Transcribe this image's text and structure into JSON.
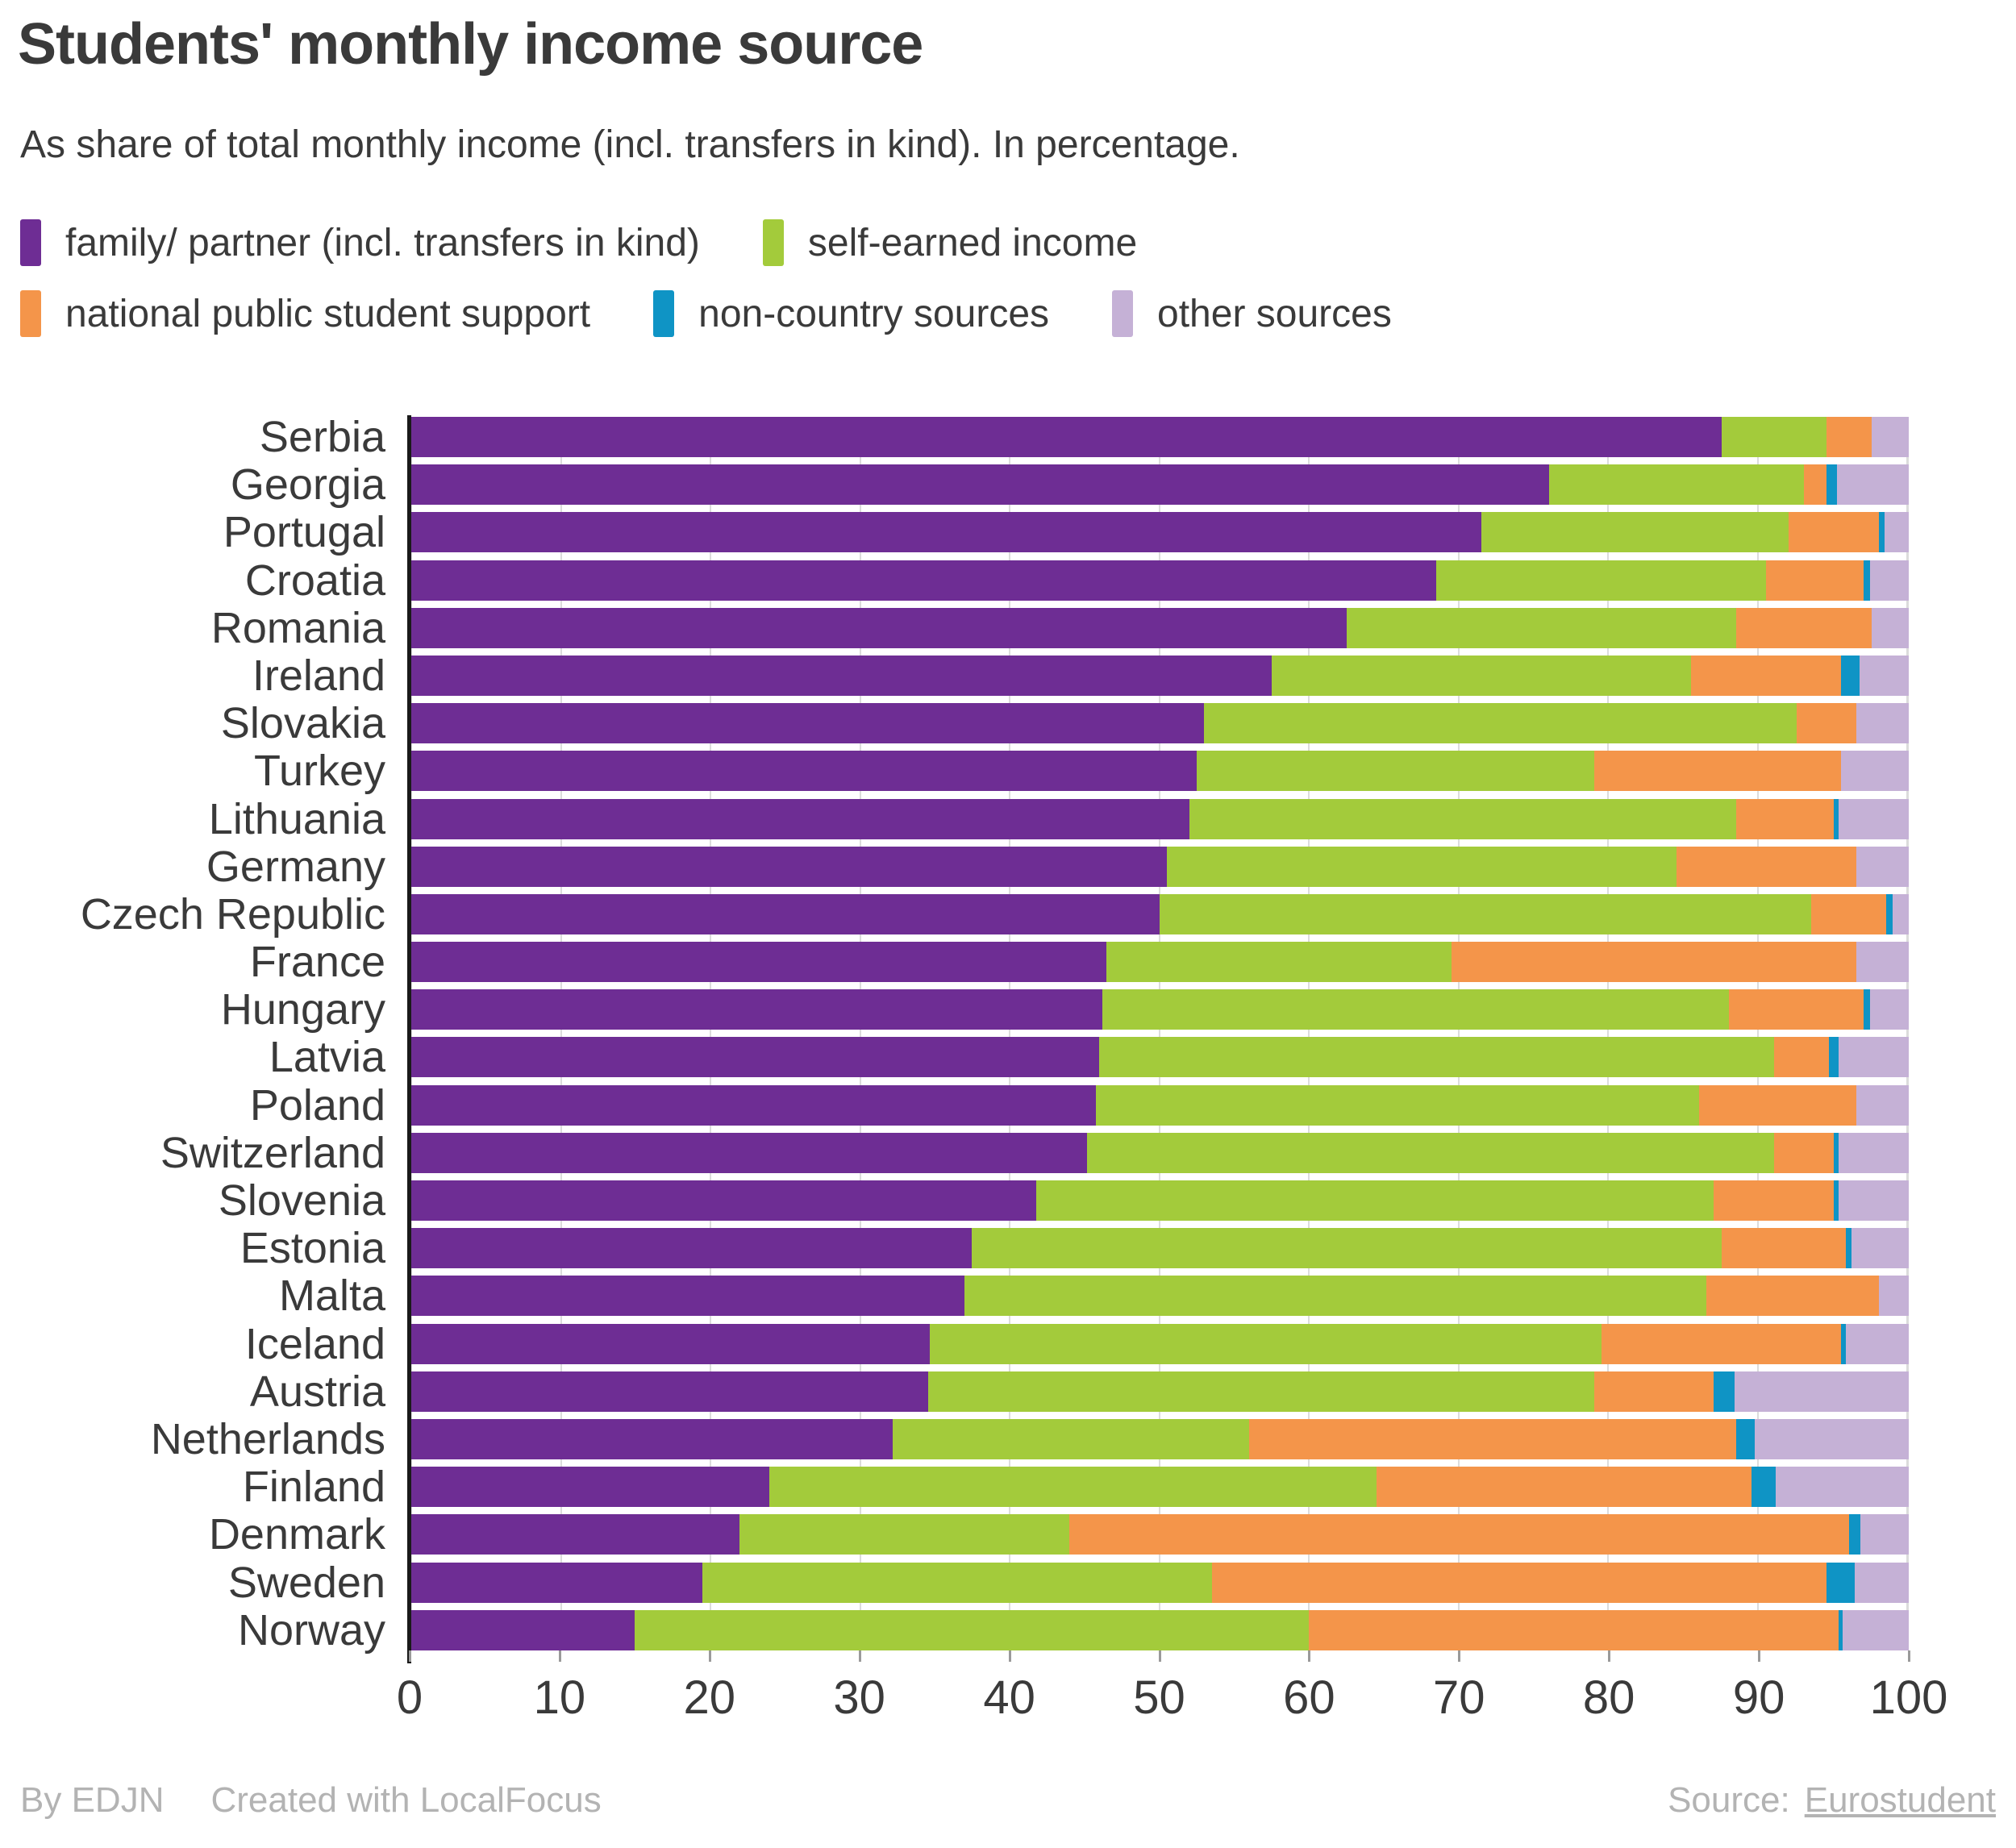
{
  "header": {
    "title": "Students' monthly income source",
    "subtitle": "As share of total monthly income (incl. transfers in kind). In percentage."
  },
  "colors": {
    "family": "#6e2d94",
    "self_earned": "#a3cb3b",
    "national_support": "#f4954a",
    "non_country": "#0f94c5",
    "other": "#c5b1d6",
    "text": "#3a3a3a",
    "muted": "#b3b3b3",
    "gridline": "#dcdcdc",
    "axis": "#1a1a1a"
  },
  "legend": {
    "rows": [
      [
        {
          "key": "family",
          "label": "family/ partner (incl. transfers in kind)"
        },
        {
          "key": "self_earned",
          "label": "self-earned income"
        }
      ],
      [
        {
          "key": "national_support",
          "label": "national public student support"
        },
        {
          "key": "non_country",
          "label": "non-country sources"
        },
        {
          "key": "other",
          "label": "other sources"
        }
      ]
    ]
  },
  "chart_data": {
    "type": "bar",
    "orientation": "horizontal",
    "stacked": true,
    "unit": "percent",
    "xlim": [
      0,
      100
    ],
    "x_ticks": [
      0,
      10,
      20,
      30,
      40,
      50,
      60,
      70,
      80,
      90,
      100
    ],
    "grid": true,
    "legend_position": "top",
    "categories": [
      "Serbia",
      "Georgia",
      "Portugal",
      "Croatia",
      "Romania",
      "Ireland",
      "Slovakia",
      "Turkey",
      "Lithuania",
      "Germany",
      "Czech Republic",
      "France",
      "Hungary",
      "Latvia",
      "Poland",
      "Switzerland",
      "Slovenia",
      "Estonia",
      "Malta",
      "Iceland",
      "Austria",
      "Netherlands",
      "Finland",
      "Denmark",
      "Sweden",
      "Norway"
    ],
    "series": [
      {
        "name": "family/ partner (incl. transfers in kind)",
        "color_key": "family",
        "values": [
          87.5,
          76,
          71.5,
          68.5,
          62.5,
          57.5,
          53,
          52.5,
          52,
          50.5,
          50,
          46.5,
          46.2,
          46,
          45.8,
          45.2,
          41.8,
          37.5,
          37,
          34.7,
          34.6,
          32.2,
          24,
          22,
          19.5,
          15
        ]
      },
      {
        "name": "self-earned income",
        "color_key": "self_earned",
        "values": [
          7,
          17,
          20.5,
          22,
          26,
          28,
          39.5,
          26.5,
          36.5,
          34,
          43.5,
          23,
          41.8,
          45,
          40.2,
          45.8,
          45.2,
          50,
          49.5,
          44.8,
          44.4,
          23.8,
          40.5,
          22,
          34,
          45
        ]
      },
      {
        "name": "national public student support",
        "color_key": "national_support",
        "values": [
          3,
          1.5,
          6,
          6.5,
          9,
          10,
          4,
          16.5,
          6.5,
          12,
          5,
          27,
          9,
          3.7,
          10.5,
          4,
          8,
          8.3,
          11.5,
          16,
          8,
          32.5,
          25,
          52,
          41,
          35.3
        ]
      },
      {
        "name": "non-country sources",
        "color_key": "non_country",
        "values": [
          0,
          0.7,
          0.4,
          0.4,
          0,
          1.2,
          0,
          0,
          0.3,
          0,
          0.4,
          0,
          0.4,
          0.6,
          0,
          0.3,
          0.3,
          0.4,
          0,
          0.3,
          1.4,
          1.2,
          1.6,
          0.8,
          1.9,
          0.3
        ]
      },
      {
        "name": "other sources",
        "color_key": "other",
        "values": [
          2.5,
          4.8,
          1.6,
          2.6,
          2.5,
          3.3,
          3.5,
          4.5,
          4.7,
          3.5,
          1.1,
          3.5,
          2.6,
          4.7,
          3.5,
          4.7,
          4.7,
          3.8,
          2,
          4.2,
          11.6,
          10.3,
          8.9,
          3.2,
          3.6,
          4.4
        ]
      }
    ]
  },
  "footer": {
    "byline": "By EDJN",
    "created_with": "Created with LocalFocus",
    "source_label": "Source:",
    "source_link": "Eurostudent"
  }
}
